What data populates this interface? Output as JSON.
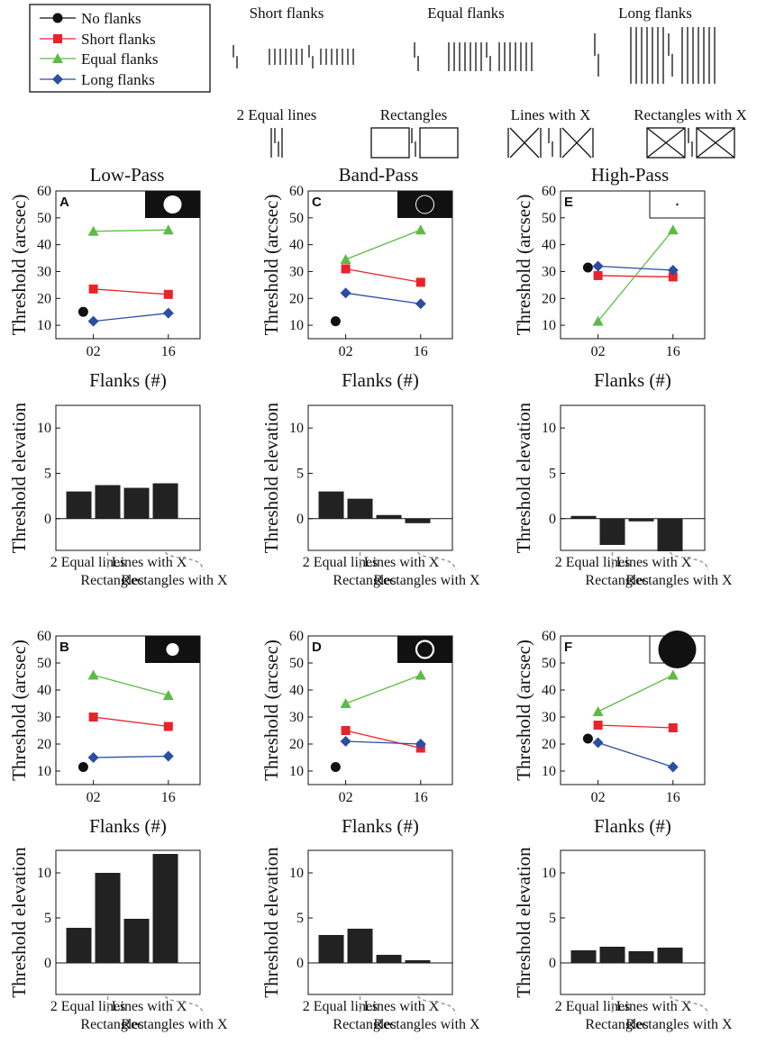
{
  "legend": [
    {
      "label": "No flanks",
      "color": "#111111",
      "marker": "circle"
    },
    {
      "label": "Short flanks",
      "color": "#e8242a",
      "marker": "square"
    },
    {
      "label": "Equal flanks",
      "color": "#5dbb46",
      "marker": "triangle"
    },
    {
      "label": "Long flanks",
      "color": "#2b4ea2",
      "marker": "diamond"
    }
  ],
  "flank_examples": [
    "Short flanks",
    "Equal flanks",
    "Long flanks"
  ],
  "condition_examples": [
    "2 Equal lines",
    "Rectangles",
    "Lines with X",
    "Rectangles with X"
  ],
  "column_titles": [
    "Low-Pass",
    "Band-Pass",
    "High-Pass"
  ],
  "axis_text": {
    "threshold_ylabel": "Threshold (arcsec)",
    "flanks_xlabel": "Flanks (#)",
    "elevation_ylabel": "Threshold elevation",
    "line_x_ticks": [
      "02",
      "16"
    ],
    "line_y_ticks": [
      "10",
      "20",
      "30",
      "40",
      "50",
      "60"
    ],
    "bar_y_ticks": [
      "0",
      "5",
      "10"
    ],
    "bar_categories_top": [
      "2 Equal lines",
      "Lines with X"
    ],
    "bar_categories_bottom": [
      "Rectangles",
      "Rectangles with X"
    ]
  },
  "chart_data": [
    {
      "panel": "A",
      "type": "line",
      "filter": "Low-Pass",
      "ylabel": "Threshold (arcsec)",
      "xlabel": "Flanks (#)",
      "x": [
        "02",
        "16"
      ],
      "ylim": [
        5,
        60
      ],
      "no_flanks": 15,
      "series": [
        {
          "name": "Short flanks",
          "values": [
            23.5,
            21.5
          ]
        },
        {
          "name": "Equal flanks",
          "values": [
            45,
            45.5
          ]
        },
        {
          "name": "Long flanks",
          "values": [
            11.5,
            14.5
          ]
        }
      ]
    },
    {
      "panel": "C",
      "type": "line",
      "filter": "Band-Pass",
      "ylabel": "Threshold (arcsec)",
      "xlabel": "Flanks (#)",
      "x": [
        "02",
        "16"
      ],
      "ylim": [
        5,
        60
      ],
      "no_flanks": 11.5,
      "series": [
        {
          "name": "Short flanks",
          "values": [
            31,
            26
          ]
        },
        {
          "name": "Equal flanks",
          "values": [
            34.5,
            45.5
          ]
        },
        {
          "name": "Long flanks",
          "values": [
            22,
            18
          ]
        }
      ]
    },
    {
      "panel": "E",
      "type": "line",
      "filter": "High-Pass",
      "ylabel": "Threshold (arcsec)",
      "xlabel": "Flanks (#)",
      "x": [
        "02",
        "16"
      ],
      "ylim": [
        5,
        60
      ],
      "no_flanks": 31.5,
      "series": [
        {
          "name": "Short flanks",
          "values": [
            28.5,
            28
          ]
        },
        {
          "name": "Equal flanks",
          "values": [
            11.5,
            45.5
          ]
        },
        {
          "name": "Long flanks",
          "values": [
            32,
            30.5
          ]
        }
      ]
    },
    {
      "type": "bar",
      "filter": "Low-Pass",
      "ylabel": "Threshold elevation",
      "categories": [
        "2 Equal lines",
        "Rectangles",
        "Lines with X",
        "Rectangles with X"
      ],
      "values": [
        3.0,
        3.7,
        3.4,
        3.9
      ],
      "ylim": [
        -3.5,
        12.5
      ]
    },
    {
      "type": "bar",
      "filter": "Band-Pass",
      "ylabel": "Threshold elevation",
      "categories": [
        "2 Equal lines",
        "Rectangles",
        "Lines with X",
        "Rectangles with X"
      ],
      "values": [
        3.0,
        2.2,
        0.4,
        -0.5
      ],
      "ylim": [
        -3.5,
        12.5
      ]
    },
    {
      "type": "bar",
      "filter": "High-Pass",
      "ylabel": "Threshold elevation",
      "categories": [
        "2 Equal lines",
        "Rectangles",
        "Lines with X",
        "Rectangles with X"
      ],
      "values": [
        0.3,
        -2.9,
        -0.3,
        -3.6
      ],
      "ylim": [
        -3.5,
        12.5
      ]
    },
    {
      "panel": "B",
      "type": "line",
      "filter": "Low-Pass",
      "ylabel": "Threshold (arcsec)",
      "xlabel": "Flanks (#)",
      "x": [
        "02",
        "16"
      ],
      "ylim": [
        5,
        60
      ],
      "no_flanks": 11.5,
      "series": [
        {
          "name": "Short flanks",
          "values": [
            30,
            26.5
          ]
        },
        {
          "name": "Equal flanks",
          "values": [
            45.5,
            38
          ]
        },
        {
          "name": "Long flanks",
          "values": [
            15,
            15.5
          ]
        }
      ]
    },
    {
      "panel": "D",
      "type": "line",
      "filter": "Band-Pass",
      "ylabel": "Threshold (arcsec)",
      "xlabel": "Flanks (#)",
      "x": [
        "02",
        "16"
      ],
      "ylim": [
        5,
        60
      ],
      "no_flanks": 11.5,
      "series": [
        {
          "name": "Short flanks",
          "values": [
            25,
            18.5
          ]
        },
        {
          "name": "Equal flanks",
          "values": [
            35,
            45.5
          ]
        },
        {
          "name": "Long flanks",
          "values": [
            21,
            20
          ]
        }
      ]
    },
    {
      "panel": "F",
      "type": "line",
      "filter": "High-Pass",
      "ylabel": "Threshold (arcsec)",
      "xlabel": "Flanks (#)",
      "x": [
        "02",
        "16"
      ],
      "ylim": [
        5,
        60
      ],
      "no_flanks": 22,
      "series": [
        {
          "name": "Short flanks",
          "values": [
            27,
            26
          ]
        },
        {
          "name": "Equal flanks",
          "values": [
            32,
            45.5
          ]
        },
        {
          "name": "Long flanks",
          "values": [
            20.5,
            11.5
          ]
        }
      ]
    },
    {
      "type": "bar",
      "filter": "Low-Pass",
      "ylabel": "Threshold elevation",
      "categories": [
        "2 Equal lines",
        "Rectangles",
        "Lines with X",
        "Rectangles with X"
      ],
      "values": [
        3.9,
        10.0,
        4.9,
        12.1
      ],
      "ylim": [
        -3.5,
        12.5
      ]
    },
    {
      "type": "bar",
      "filter": "Band-Pass",
      "ylabel": "Threshold elevation",
      "categories": [
        "2 Equal lines",
        "Rectangles",
        "Lines with X",
        "Rectangles with X"
      ],
      "values": [
        3.1,
        3.8,
        0.9,
        0.3
      ],
      "ylim": [
        -3.5,
        12.5
      ]
    },
    {
      "type": "bar",
      "filter": "High-Pass",
      "ylabel": "Threshold elevation",
      "categories": [
        "2 Equal lines",
        "Rectangles",
        "Lines with X",
        "Rectangles with X"
      ],
      "values": [
        1.4,
        1.8,
        1.3,
        1.7
      ],
      "ylim": [
        -3.5,
        12.5
      ]
    }
  ]
}
